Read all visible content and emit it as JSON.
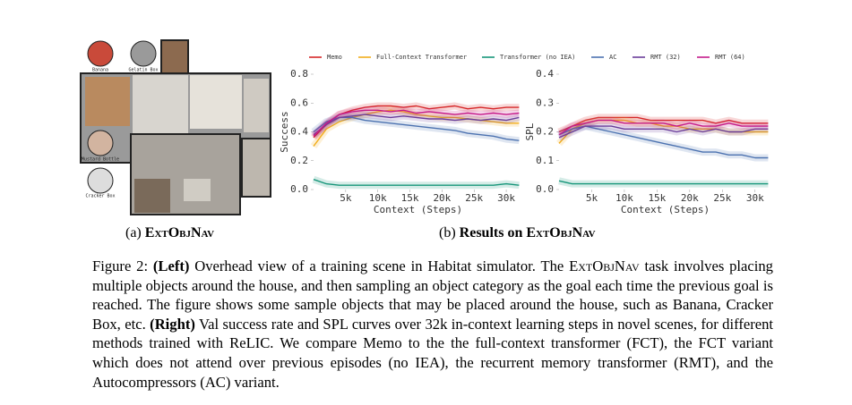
{
  "figure": {
    "objects": [
      "Banana",
      "Gelatin Box",
      "Mustard Bottle",
      "Cracker Box"
    ],
    "subcaption_a": {
      "label": "(a)",
      "name": "ExtObjNav"
    },
    "subcaption_b": {
      "label": "(b)",
      "text": "Results on",
      "name": "ExtObjNav"
    }
  },
  "caption": [
    "Figure 2:",
    "(Left)",
    "Overhead view of a training scene in Habitat simulator. The",
    "ExtObjNav",
    "task involves placing multiple objects around the house, and then sampling an object category as the goal each time the previous goal is reached. The figure shows some sample objects that may be placed around the house, such as Banana, Cracker Box, etc.",
    "(Right)",
    "Val success rate and SPL curves over 32k in-context learning steps in novel scenes, for different methods trained with ReLIC. We compare Memo to the the full-context transformer (FCT), the FCT variant which does not attend over previous episodes (no IEA), the recurrent memory transformer (RMT), and the Autocompressors (AC) variant."
  ],
  "chart_data": [
    {
      "type": "line",
      "ylabel": "Success",
      "xlabel": "Context (Steps)",
      "bands": true,
      "x": [
        0,
        2000,
        4000,
        6000,
        8000,
        10000,
        12000,
        14000,
        16000,
        18000,
        20000,
        22000,
        24000,
        26000,
        28000,
        30000,
        32000
      ],
      "xlim": [
        0,
        32500
      ],
      "ylim": [
        0,
        0.8
      ],
      "xticks": [
        {
          "value": 5000,
          "label": "5k"
        },
        {
          "value": 10000,
          "label": "10k"
        },
        {
          "value": 15000,
          "label": "15k"
        },
        {
          "value": 20000,
          "label": "20k"
        },
        {
          "value": 25000,
          "label": "25k"
        },
        {
          "value": 30000,
          "label": "30k"
        }
      ],
      "yticks": [
        {
          "value": 0,
          "label": "0.0"
        },
        0.2,
        0.4,
        0.6,
        0.8
      ],
      "series": [
        {
          "name": "Memo",
          "color": "#d62728",
          "values": [
            0.36,
            0.45,
            0.52,
            0.55,
            0.57,
            0.58,
            0.58,
            0.57,
            0.58,
            0.56,
            0.57,
            0.58,
            0.56,
            0.57,
            0.56,
            0.57,
            0.57
          ]
        },
        {
          "name": "Full-Context Transformer",
          "color": "#f2ae1c",
          "values": [
            0.3,
            0.42,
            0.47,
            0.5,
            0.52,
            0.54,
            0.55,
            0.54,
            0.52,
            0.51,
            0.5,
            0.5,
            0.49,
            0.48,
            0.47,
            0.46,
            0.46
          ]
        },
        {
          "name": "Transformer (no IEA)",
          "color": "#17967a",
          "values": [
            0.07,
            0.04,
            0.03,
            0.03,
            0.03,
            0.03,
            0.03,
            0.03,
            0.03,
            0.03,
            0.03,
            0.03,
            0.03,
            0.03,
            0.03,
            0.04,
            0.03
          ]
        },
        {
          "name": "AC",
          "color": "#4c72b0",
          "values": [
            0.4,
            0.47,
            0.5,
            0.5,
            0.48,
            0.47,
            0.46,
            0.45,
            0.44,
            0.43,
            0.42,
            0.41,
            0.39,
            0.38,
            0.37,
            0.35,
            0.34
          ]
        },
        {
          "name": "RMT (32)",
          "color": "#6a3d9a",
          "values": [
            0.38,
            0.45,
            0.5,
            0.51,
            0.52,
            0.51,
            0.5,
            0.51,
            0.5,
            0.49,
            0.49,
            0.48,
            0.49,
            0.48,
            0.49,
            0.48,
            0.5
          ]
        },
        {
          "name": "RMT (64)",
          "color": "#c51b8a",
          "values": [
            0.37,
            0.46,
            0.52,
            0.54,
            0.55,
            0.55,
            0.54,
            0.55,
            0.53,
            0.54,
            0.53,
            0.52,
            0.53,
            0.52,
            0.53,
            0.52,
            0.53
          ]
        }
      ]
    },
    {
      "type": "line",
      "ylabel": "SPL",
      "xlabel": "Context (Steps)",
      "bands": true,
      "x": [
        0,
        2000,
        4000,
        6000,
        8000,
        10000,
        12000,
        14000,
        16000,
        18000,
        20000,
        22000,
        24000,
        26000,
        28000,
        30000,
        32000
      ],
      "xlim": [
        0,
        32500
      ],
      "ylim": [
        0,
        0.4
      ],
      "xticks": [
        {
          "value": 5000,
          "label": "5k"
        },
        {
          "value": 10000,
          "label": "10k"
        },
        {
          "value": 15000,
          "label": "15k"
        },
        {
          "value": 20000,
          "label": "20k"
        },
        {
          "value": 25000,
          "label": "25k"
        },
        {
          "value": 30000,
          "label": "30k"
        }
      ],
      "yticks": [
        {
          "value": 0,
          "label": "0.0"
        },
        0.1,
        0.2,
        0.3,
        0.4
      ],
      "series": [
        {
          "color": "#d62728",
          "values": [
            0.2,
            0.22,
            0.24,
            0.25,
            0.25,
            0.25,
            0.25,
            0.24,
            0.24,
            0.24,
            0.24,
            0.24,
            0.23,
            0.24,
            0.23,
            0.23,
            0.23
          ]
        },
        {
          "color": "#f2ae1c",
          "values": [
            0.16,
            0.21,
            0.23,
            0.24,
            0.24,
            0.24,
            0.23,
            0.23,
            0.22,
            0.22,
            0.21,
            0.21,
            0.21,
            0.2,
            0.2,
            0.2,
            0.2
          ]
        },
        {
          "color": "#17967a",
          "values": [
            0.03,
            0.02,
            0.02,
            0.02,
            0.02,
            0.02,
            0.02,
            0.02,
            0.02,
            0.02,
            0.02,
            0.02,
            0.02,
            0.02,
            0.02,
            0.02,
            0.02
          ]
        },
        {
          "color": "#4c72b0",
          "values": [
            0.19,
            0.21,
            0.22,
            0.21,
            0.2,
            0.19,
            0.18,
            0.17,
            0.16,
            0.15,
            0.14,
            0.13,
            0.13,
            0.12,
            0.12,
            0.11,
            0.11
          ]
        },
        {
          "color": "#6a3d9a",
          "values": [
            0.18,
            0.2,
            0.22,
            0.22,
            0.22,
            0.21,
            0.21,
            0.21,
            0.21,
            0.2,
            0.21,
            0.2,
            0.21,
            0.2,
            0.2,
            0.21,
            0.21
          ]
        },
        {
          "color": "#c51b8a",
          "values": [
            0.19,
            0.22,
            0.23,
            0.24,
            0.24,
            0.23,
            0.23,
            0.23,
            0.23,
            0.22,
            0.23,
            0.22,
            0.22,
            0.23,
            0.22,
            0.22,
            0.22
          ]
        }
      ]
    }
  ]
}
